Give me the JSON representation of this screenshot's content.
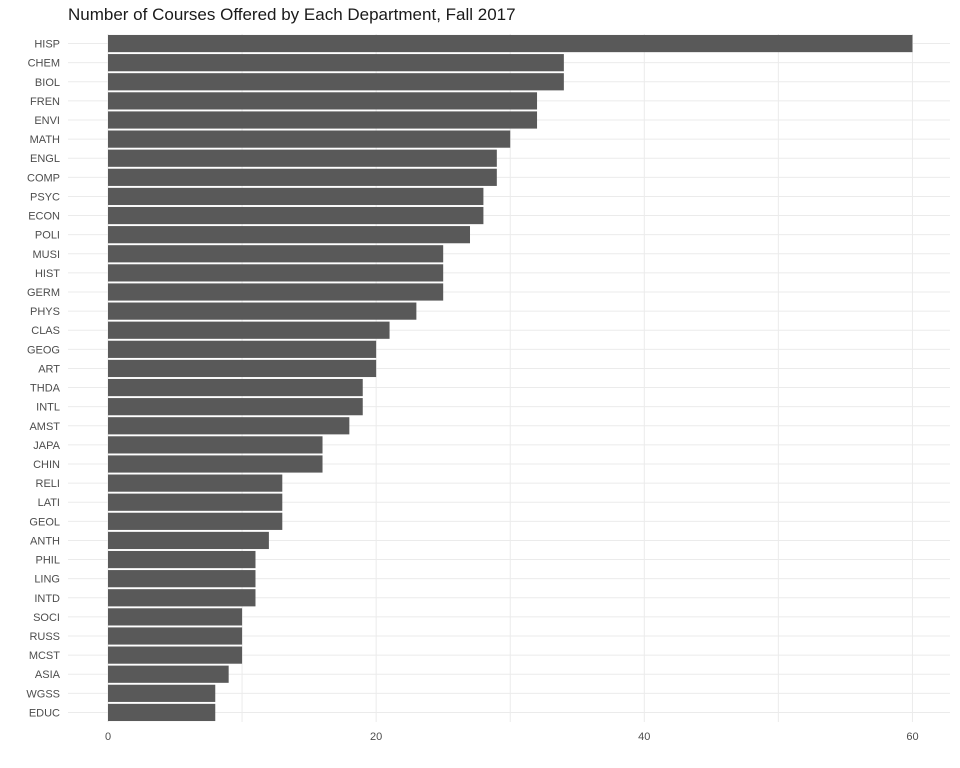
{
  "chart_data": {
    "type": "bar",
    "orientation": "horizontal",
    "title": "Number of Courses Offered by Each Department, Fall 2017",
    "xlabel": "",
    "ylabel": "",
    "xlim": [
      0,
      62.8
    ],
    "x_ticks": [
      0,
      20,
      40,
      60
    ],
    "grid": true,
    "bar_color": "#595959",
    "grid_color": "#ebebeb",
    "categories": [
      "HISP",
      "CHEM",
      "BIOL",
      "FREN",
      "ENVI",
      "MATH",
      "ENGL",
      "COMP",
      "PSYC",
      "ECON",
      "POLI",
      "MUSI",
      "HIST",
      "GERM",
      "PHYS",
      "CLAS",
      "GEOG",
      "ART",
      "THDA",
      "INTL",
      "AMST",
      "JAPA",
      "CHIN",
      "RELI",
      "LATI",
      "GEOL",
      "ANTH",
      "PHIL",
      "LING",
      "INTD",
      "SOCI",
      "RUSS",
      "MCST",
      "ASIA",
      "WGSS",
      "EDUC"
    ],
    "values": [
      60,
      34,
      34,
      32,
      32,
      30,
      29,
      29,
      28,
      28,
      27,
      25,
      25,
      25,
      23,
      21,
      20,
      20,
      19,
      19,
      18,
      16,
      16,
      13,
      13,
      13,
      12,
      11,
      11,
      11,
      10,
      10,
      10,
      9,
      8,
      8
    ]
  }
}
